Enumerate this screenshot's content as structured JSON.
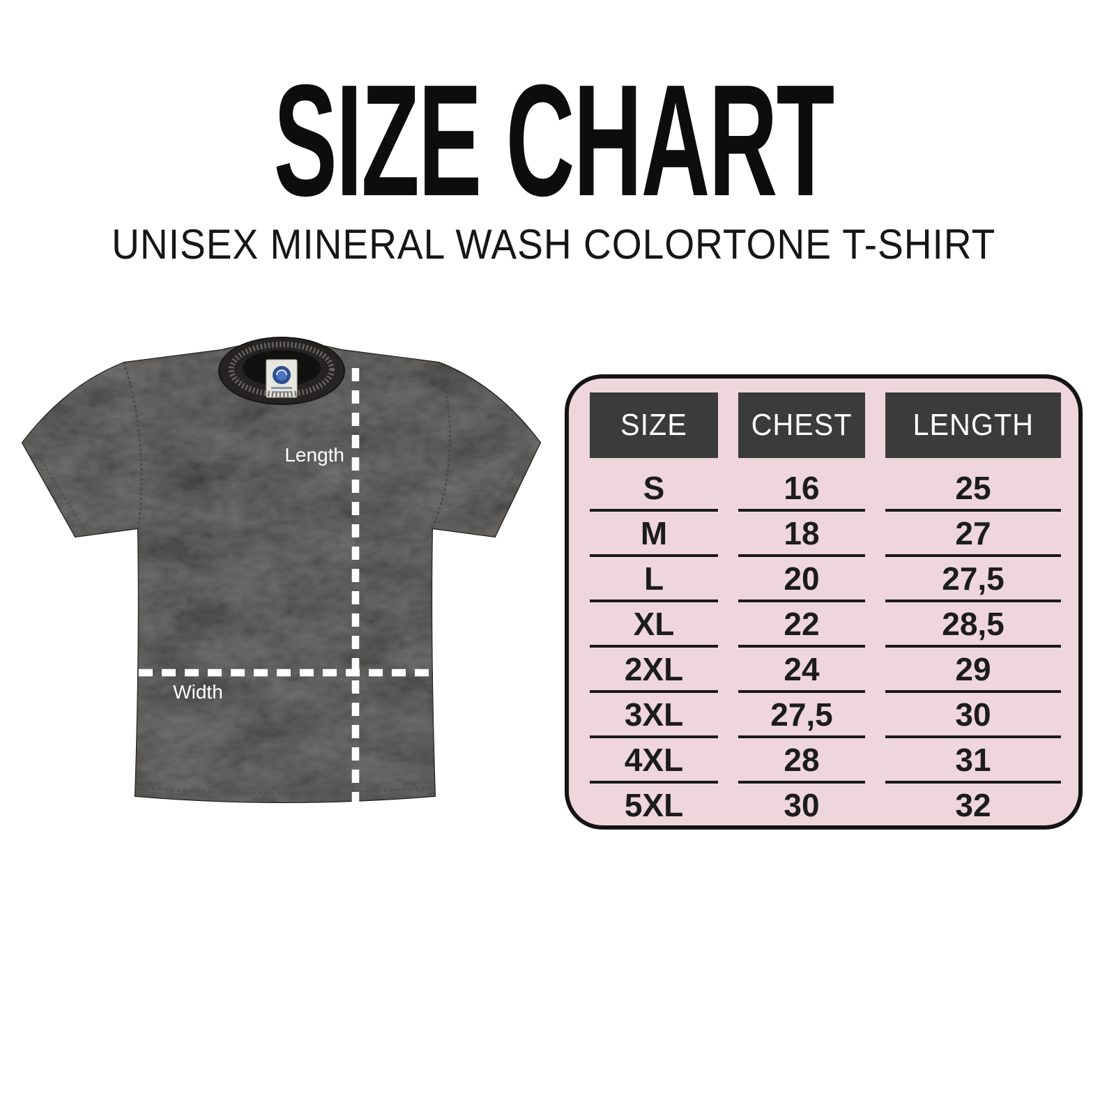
{
  "title": "SIZE CHART",
  "subtitle": "UNISEX MINERAL WASH COLORTONE T-SHIRT",
  "diagram": {
    "length_label": "Length",
    "width_label": "Width"
  },
  "chart_data": {
    "type": "table",
    "title": "SIZE CHART",
    "subtitle": "UNISEX MINERAL WASH COLORTONE T-SHIRT",
    "columns": [
      "SIZE",
      "CHEST",
      "LENGTH"
    ],
    "rows": [
      [
        "S",
        "16",
        "25"
      ],
      [
        "M",
        "18",
        "27"
      ],
      [
        "L",
        "20",
        "27,5"
      ],
      [
        "XL",
        "22",
        "28,5"
      ],
      [
        "2XL",
        "24",
        "29"
      ],
      [
        "3XL",
        "27,5",
        "30"
      ],
      [
        "4XL",
        "28",
        "31"
      ],
      [
        "5XL",
        "30",
        "32"
      ]
    ],
    "legend_position": "none",
    "grid": "row-dividers"
  },
  "colors": {
    "page_background": "#ffffff",
    "title_text": "#0d0d0d",
    "table_background": "#efd6dc",
    "table_border": "#141414",
    "header_cell_background": "#3b3b3b",
    "header_cell_text": "#ffffff",
    "row_text": "#1c1c1c",
    "row_divider": "#191919",
    "shirt_base": "#23211f",
    "measure_line": "#ffffff",
    "tag_logo_blue": "#2c4f8f"
  }
}
